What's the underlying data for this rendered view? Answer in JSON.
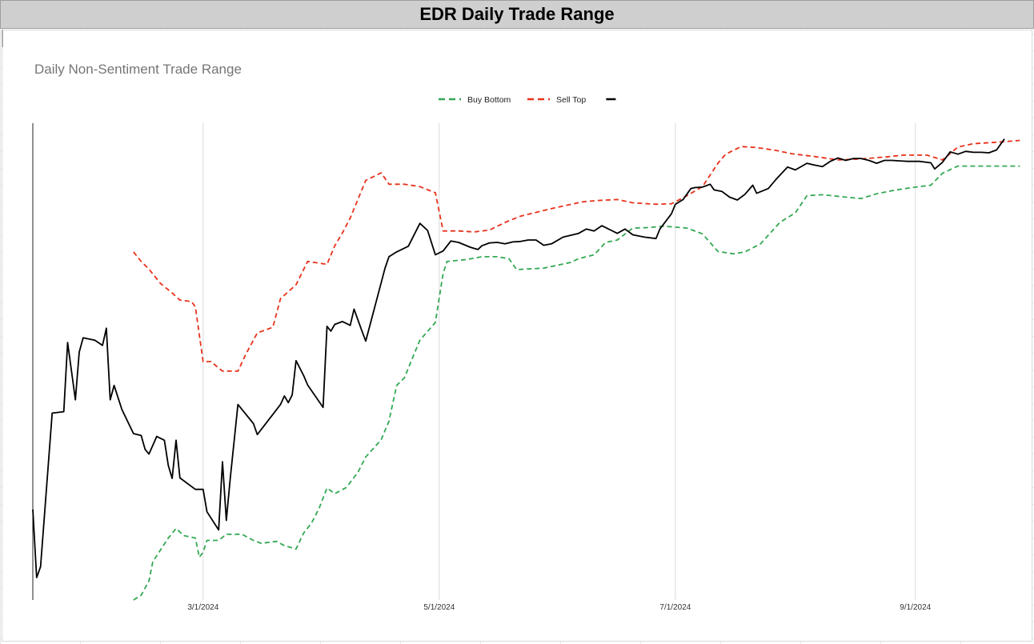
{
  "sheet": {
    "header_title": "EDR Daily Trade Range"
  },
  "colors": {
    "buy_bottom": "#33a852",
    "sell_top": "#e8311a",
    "price": "#000000",
    "gridline": "#d9d9d9",
    "title_text": "#757575"
  },
  "chart_data": {
    "type": "line",
    "title": "Daily Non-Sentiment Trade Range",
    "xlabel": "",
    "ylabel": "",
    "x_ticks": [
      "3/1/2024",
      "5/1/2024",
      "7/1/2024",
      "9/1/2024"
    ],
    "legend_position": "top-center",
    "grid": "vertical",
    "ylim": [
      0,
      100
    ],
    "series": [
      {
        "name": "Buy Bottom",
        "style": "dashed",
        "color": "#33a852",
        "points": [
          [
            "2024-02-12",
            0.0
          ],
          [
            "2024-02-14",
            1.0
          ],
          [
            "2024-02-16",
            4.0
          ],
          [
            "2024-02-17",
            8.0
          ],
          [
            "2024-02-21",
            13.0
          ],
          [
            "2024-02-23",
            15.0
          ],
          [
            "2024-02-25",
            13.5
          ],
          [
            "2024-02-28",
            13.0
          ],
          [
            "2024-02-29",
            9.0
          ],
          [
            "2024-03-01",
            10.0
          ],
          [
            "2024-03-02",
            12.5
          ],
          [
            "2024-03-05",
            12.5
          ],
          [
            "2024-03-07",
            13.8
          ],
          [
            "2024-03-11",
            13.8
          ],
          [
            "2024-03-14",
            12.5
          ],
          [
            "2024-03-16",
            11.9
          ],
          [
            "2024-03-20",
            12.3
          ],
          [
            "2024-03-22",
            11.4
          ],
          [
            "2024-03-25",
            10.7
          ],
          [
            "2024-03-27",
            14.1
          ],
          [
            "2024-03-29",
            16.1
          ],
          [
            "2024-03-31",
            19.3
          ],
          [
            "2024-04-02",
            23.5
          ],
          [
            "2024-04-04",
            22.3
          ],
          [
            "2024-04-07",
            23.6
          ],
          [
            "2024-04-10",
            26.8
          ],
          [
            "2024-04-12",
            30.0
          ],
          [
            "2024-04-16",
            33.6
          ],
          [
            "2024-04-18",
            37.5
          ],
          [
            "2024-04-20",
            45.0
          ],
          [
            "2024-04-22",
            46.6
          ],
          [
            "2024-04-24",
            50.6
          ],
          [
            "2024-04-26",
            54.5
          ],
          [
            "2024-04-30",
            58.2
          ],
          [
            "2024-05-02",
            68.5
          ],
          [
            "2024-05-03",
            71.0
          ],
          [
            "2024-05-08",
            71.4
          ],
          [
            "2024-05-12",
            72.0
          ],
          [
            "2024-05-16",
            72.0
          ],
          [
            "2024-05-19",
            71.6
          ],
          [
            "2024-05-21",
            69.3
          ],
          [
            "2024-05-23",
            69.4
          ],
          [
            "2024-05-28",
            69.6
          ],
          [
            "2024-06-01",
            70.3
          ],
          [
            "2024-06-04",
            70.8
          ],
          [
            "2024-06-06",
            71.6
          ],
          [
            "2024-06-10",
            72.4
          ],
          [
            "2024-06-13",
            75.0
          ],
          [
            "2024-06-16",
            75.5
          ],
          [
            "2024-06-20",
            78.0
          ],
          [
            "2024-06-24",
            78.1
          ],
          [
            "2024-06-28",
            78.4
          ],
          [
            "2024-07-04",
            78.0
          ],
          [
            "2024-07-08",
            76.8
          ],
          [
            "2024-07-12",
            73.1
          ],
          [
            "2024-07-16",
            72.6
          ],
          [
            "2024-07-19",
            73.0
          ],
          [
            "2024-07-23",
            74.7
          ],
          [
            "2024-07-28",
            79.2
          ],
          [
            "2024-08-01",
            81.2
          ],
          [
            "2024-08-04",
            84.8
          ],
          [
            "2024-08-08",
            85.0
          ],
          [
            "2024-08-14",
            84.5
          ],
          [
            "2024-08-18",
            84.2
          ],
          [
            "2024-08-22",
            85.2
          ],
          [
            "2024-08-27",
            86.0
          ],
          [
            "2024-09-01",
            86.6
          ],
          [
            "2024-09-05",
            87.0
          ],
          [
            "2024-09-08",
            89.5
          ],
          [
            "2024-09-12",
            91.0
          ],
          [
            "2024-09-16",
            91.0
          ],
          [
            "2024-09-22",
            91.0
          ],
          [
            "2024-09-28",
            91.0
          ]
        ]
      },
      {
        "name": "Sell Top",
        "style": "dashed",
        "color": "#e8311a",
        "points": [
          [
            "2024-02-12",
            73.0
          ],
          [
            "2024-02-14",
            71.0
          ],
          [
            "2024-02-16",
            69.4
          ],
          [
            "2024-02-19",
            66.4
          ],
          [
            "2024-02-22",
            64.4
          ],
          [
            "2024-02-24",
            62.9
          ],
          [
            "2024-02-27",
            62.6
          ],
          [
            "2024-02-28",
            61.5
          ],
          [
            "2024-03-01",
            50.0
          ],
          [
            "2024-03-03",
            50.0
          ],
          [
            "2024-03-06",
            48.0
          ],
          [
            "2024-03-10",
            48.0
          ],
          [
            "2024-03-12",
            51.5
          ],
          [
            "2024-03-15",
            56.0
          ],
          [
            "2024-03-19",
            57.2
          ],
          [
            "2024-03-21",
            63.2
          ],
          [
            "2024-03-25",
            66.1
          ],
          [
            "2024-03-28",
            71.0
          ],
          [
            "2024-04-02",
            70.4
          ],
          [
            "2024-04-04",
            74.3
          ],
          [
            "2024-04-06",
            77.0
          ],
          [
            "2024-04-08",
            80.1
          ],
          [
            "2024-04-12",
            88.0
          ],
          [
            "2024-04-16",
            89.6
          ],
          [
            "2024-04-18",
            87.2
          ],
          [
            "2024-04-22",
            87.2
          ],
          [
            "2024-04-26",
            86.7
          ],
          [
            "2024-04-30",
            85.4
          ],
          [
            "2024-05-02",
            77.4
          ],
          [
            "2024-05-06",
            77.4
          ],
          [
            "2024-05-10",
            77.2
          ],
          [
            "2024-05-14",
            77.6
          ],
          [
            "2024-05-18",
            79.2
          ],
          [
            "2024-05-22",
            80.5
          ],
          [
            "2024-05-26",
            81.3
          ],
          [
            "2024-05-30",
            82.1
          ],
          [
            "2024-06-03",
            82.8
          ],
          [
            "2024-06-07",
            83.5
          ],
          [
            "2024-06-11",
            83.8
          ],
          [
            "2024-06-16",
            84.0
          ],
          [
            "2024-06-20",
            83.3
          ],
          [
            "2024-06-26",
            83.0
          ],
          [
            "2024-06-30",
            83.1
          ],
          [
            "2024-07-04",
            84.8
          ],
          [
            "2024-07-08",
            86.7
          ],
          [
            "2024-07-12",
            91.6
          ],
          [
            "2024-07-14",
            93.5
          ],
          [
            "2024-07-18",
            95.1
          ],
          [
            "2024-07-22",
            94.9
          ],
          [
            "2024-07-27",
            94.3
          ],
          [
            "2024-07-31",
            93.6
          ],
          [
            "2024-08-06",
            93.0
          ],
          [
            "2024-08-12",
            92.3
          ],
          [
            "2024-08-18",
            92.5
          ],
          [
            "2024-08-24",
            92.9
          ],
          [
            "2024-08-29",
            93.3
          ],
          [
            "2024-09-04",
            93.3
          ],
          [
            "2024-09-08",
            92.3
          ],
          [
            "2024-09-12",
            95.0
          ],
          [
            "2024-09-16",
            95.7
          ],
          [
            "2024-09-22",
            96.0
          ],
          [
            "2024-09-28",
            96.4
          ]
        ]
      },
      {
        "name": "",
        "style": "solid",
        "color": "#000000",
        "points": [
          [
            "2024-01-17",
            19.0
          ],
          [
            "2024-01-18",
            4.7
          ],
          [
            "2024-01-19",
            7.0
          ],
          [
            "2024-01-22",
            39.2
          ],
          [
            "2024-01-25",
            39.5
          ],
          [
            "2024-01-26",
            54.0
          ],
          [
            "2024-01-28",
            42.0
          ],
          [
            "2024-01-29",
            52.0
          ],
          [
            "2024-01-30",
            55.0
          ],
          [
            "2024-02-02",
            54.5
          ],
          [
            "2024-02-04",
            53.4
          ],
          [
            "2024-02-05",
            57.0
          ],
          [
            "2024-02-06",
            42.0
          ],
          [
            "2024-02-07",
            45.0
          ],
          [
            "2024-02-09",
            40.0
          ],
          [
            "2024-02-12",
            34.9
          ],
          [
            "2024-02-14",
            34.5
          ],
          [
            "2024-02-15",
            31.6
          ],
          [
            "2024-02-16",
            30.6
          ],
          [
            "2024-02-18",
            34.3
          ],
          [
            "2024-02-20",
            33.5
          ],
          [
            "2024-02-21",
            28.2
          ],
          [
            "2024-02-22",
            25.5
          ],
          [
            "2024-02-23",
            33.5
          ],
          [
            "2024-02-24",
            25.6
          ],
          [
            "2024-02-28",
            23.2
          ],
          [
            "2024-03-01",
            23.2
          ],
          [
            "2024-03-02",
            18.5
          ],
          [
            "2024-03-05",
            14.7
          ],
          [
            "2024-03-06",
            29.0
          ],
          [
            "2024-03-07",
            16.7
          ],
          [
            "2024-03-08",
            25.5
          ],
          [
            "2024-03-10",
            41.0
          ],
          [
            "2024-03-14",
            37.0
          ],
          [
            "2024-03-15",
            34.7
          ],
          [
            "2024-03-21",
            41.0
          ],
          [
            "2024-03-22",
            42.8
          ],
          [
            "2024-03-23",
            41.4
          ],
          [
            "2024-03-24",
            43.0
          ],
          [
            "2024-03-25",
            50.2
          ],
          [
            "2024-03-27",
            47.0
          ],
          [
            "2024-03-28",
            45.1
          ],
          [
            "2024-04-01",
            40.4
          ],
          [
            "2024-04-02",
            57.4
          ],
          [
            "2024-04-03",
            56.4
          ],
          [
            "2024-04-04",
            57.8
          ],
          [
            "2024-04-06",
            58.4
          ],
          [
            "2024-04-08",
            57.6
          ],
          [
            "2024-04-09",
            61.0
          ],
          [
            "2024-04-11",
            56.5
          ],
          [
            "2024-04-12",
            54.3
          ],
          [
            "2024-04-17",
            69.6
          ],
          [
            "2024-04-18",
            72.0
          ],
          [
            "2024-04-20",
            73.0
          ],
          [
            "2024-04-23",
            74.2
          ],
          [
            "2024-04-26",
            79.0
          ],
          [
            "2024-04-28",
            77.5
          ],
          [
            "2024-04-30",
            72.4
          ],
          [
            "2024-05-02",
            73.2
          ],
          [
            "2024-05-04",
            75.3
          ],
          [
            "2024-05-06",
            75.0
          ],
          [
            "2024-05-09",
            74.0
          ],
          [
            "2024-05-11",
            73.5
          ],
          [
            "2024-05-12",
            74.3
          ],
          [
            "2024-05-14",
            74.9
          ],
          [
            "2024-05-16",
            75.0
          ],
          [
            "2024-05-18",
            74.7
          ],
          [
            "2024-05-20",
            75.1
          ],
          [
            "2024-05-22",
            75.2
          ],
          [
            "2024-05-24",
            75.5
          ],
          [
            "2024-05-26",
            75.5
          ],
          [
            "2024-05-28",
            74.4
          ],
          [
            "2024-05-30",
            74.7
          ],
          [
            "2024-06-02",
            76.1
          ],
          [
            "2024-06-06",
            76.9
          ],
          [
            "2024-06-08",
            77.8
          ],
          [
            "2024-06-10",
            77.4
          ],
          [
            "2024-06-12",
            78.5
          ],
          [
            "2024-06-14",
            77.7
          ],
          [
            "2024-06-16",
            76.9
          ],
          [
            "2024-06-18",
            77.8
          ],
          [
            "2024-06-20",
            76.6
          ],
          [
            "2024-06-23",
            76.1
          ],
          [
            "2024-06-26",
            75.8
          ],
          [
            "2024-06-27",
            77.8
          ],
          [
            "2024-06-30",
            81.0
          ],
          [
            "2024-07-01",
            83.0
          ],
          [
            "2024-07-03",
            84.0
          ],
          [
            "2024-07-05",
            86.3
          ],
          [
            "2024-07-06",
            86.5
          ],
          [
            "2024-07-08",
            86.6
          ],
          [
            "2024-07-10",
            87.2
          ],
          [
            "2024-07-11",
            86.0
          ],
          [
            "2024-07-13",
            85.7
          ],
          [
            "2024-07-15",
            84.5
          ],
          [
            "2024-07-17",
            83.9
          ],
          [
            "2024-07-19",
            85.1
          ],
          [
            "2024-07-21",
            87.0
          ],
          [
            "2024-07-22",
            85.3
          ],
          [
            "2024-07-25",
            86.3
          ],
          [
            "2024-07-27",
            88.2
          ],
          [
            "2024-07-30",
            90.8
          ],
          [
            "2024-08-01",
            90.2
          ],
          [
            "2024-08-04",
            91.6
          ],
          [
            "2024-08-06",
            91.2
          ],
          [
            "2024-08-08",
            90.9
          ],
          [
            "2024-08-10",
            92.0
          ],
          [
            "2024-08-12",
            92.7
          ],
          [
            "2024-08-14",
            92.2
          ],
          [
            "2024-08-16",
            92.6
          ],
          [
            "2024-08-18",
            92.6
          ],
          [
            "2024-08-20",
            92.2
          ],
          [
            "2024-08-22",
            91.6
          ],
          [
            "2024-08-24",
            92.2
          ],
          [
            "2024-08-26",
            92.2
          ],
          [
            "2024-08-28",
            92.1
          ],
          [
            "2024-08-30",
            92.0
          ],
          [
            "2024-09-02",
            92.0
          ],
          [
            "2024-09-05",
            91.7
          ],
          [
            "2024-09-06",
            90.4
          ],
          [
            "2024-09-08",
            91.8
          ],
          [
            "2024-09-10",
            94.0
          ],
          [
            "2024-09-12",
            93.5
          ],
          [
            "2024-09-14",
            94.1
          ],
          [
            "2024-09-16",
            93.9
          ],
          [
            "2024-09-18",
            93.9
          ],
          [
            "2024-09-20",
            93.8
          ],
          [
            "2024-09-22",
            94.4
          ],
          [
            "2024-09-24",
            96.7
          ]
        ]
      }
    ]
  }
}
